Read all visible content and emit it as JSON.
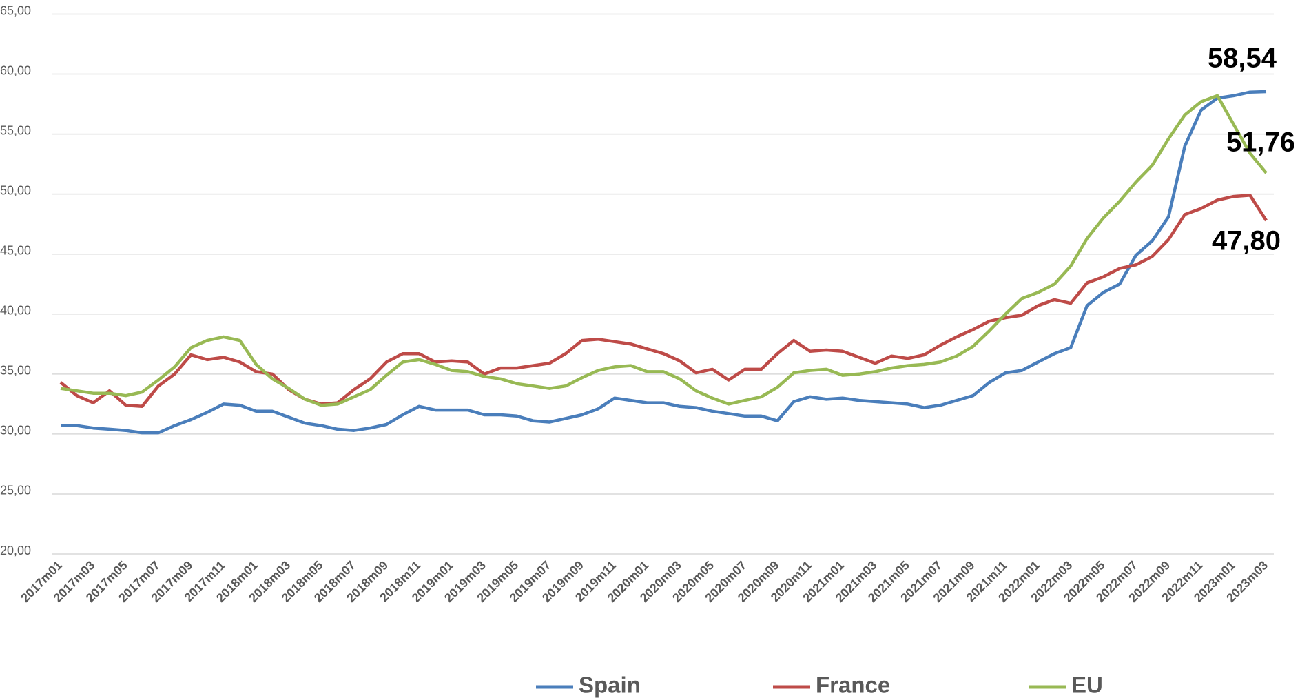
{
  "chart_data": {
    "type": "line",
    "categories": [
      "2017m01",
      null,
      "2017m03",
      null,
      "2017m05",
      null,
      "2017m07",
      null,
      "2017m09",
      null,
      "2017m11",
      null,
      "2018m01",
      null,
      "2018m03",
      null,
      "2018m05",
      null,
      "2018m07",
      null,
      "2018m09",
      null,
      "2018m11",
      null,
      "2019m01",
      null,
      "2019m03",
      null,
      "2019m05",
      null,
      "2019m07",
      null,
      "2019m09",
      null,
      "2019m11",
      null,
      "2020m01",
      null,
      "2020m03",
      null,
      "2020m05",
      null,
      "2020m07",
      null,
      "2020m09",
      null,
      "2020m11",
      null,
      "2021m01",
      null,
      "2021m03",
      null,
      "2021m05",
      null,
      "2021m07",
      null,
      "2021m09",
      null,
      "2021m11",
      null,
      "2022m01",
      null,
      "2022m03",
      null,
      "2022m05",
      null,
      "2022m07",
      null,
      "2022m09",
      null,
      "2022m11",
      null,
      "2023m01",
      null,
      "2023m03"
    ],
    "series": [
      {
        "name": "Spain",
        "color": "#4a7ebb",
        "values": [
          30.7,
          30.7,
          30.5,
          30.4,
          30.3,
          30.1,
          30.1,
          30.7,
          31.2,
          31.8,
          32.5,
          32.4,
          31.9,
          31.9,
          31.4,
          30.9,
          30.7,
          30.4,
          30.3,
          30.5,
          30.8,
          31.6,
          32.3,
          32.0,
          32.0,
          32.0,
          31.6,
          31.6,
          31.5,
          31.1,
          31.0,
          31.3,
          31.6,
          32.1,
          33.0,
          32.8,
          32.6,
          32.6,
          32.3,
          32.2,
          31.9,
          31.7,
          31.5,
          31.5,
          31.1,
          32.7,
          33.1,
          32.9,
          33.0,
          32.8,
          32.7,
          32.6,
          32.5,
          32.2,
          32.4,
          32.8,
          33.2,
          34.3,
          35.1,
          35.3,
          36.0,
          36.7,
          37.2,
          40.7,
          41.8,
          42.5,
          44.9,
          46.1,
          48.1,
          54.0,
          57.0,
          58.0,
          58.2,
          58.5,
          58.54
        ],
        "value_labels": [
          null,
          null,
          null,
          null,
          null,
          null,
          null,
          null,
          null,
          null,
          null,
          null,
          null,
          null,
          null,
          null,
          null,
          null,
          null,
          null,
          null,
          null,
          null,
          null,
          null,
          null,
          null,
          null,
          null,
          null,
          null,
          null,
          null,
          null,
          null,
          null,
          null,
          null,
          null,
          null,
          null,
          null,
          null,
          null,
          null,
          null,
          null,
          null,
          null,
          null,
          null,
          null,
          null,
          null,
          null,
          null,
          null,
          null,
          null,
          null,
          null,
          null,
          null,
          null,
          null,
          null,
          null,
          null,
          null,
          null,
          null,
          null,
          null,
          null,
          "58,54"
        ]
      },
      {
        "name": "France",
        "color": "#be4b48",
        "values": [
          34.3,
          33.2,
          32.6,
          33.6,
          32.4,
          32.3,
          34.0,
          35.0,
          36.6,
          36.2,
          36.4,
          36.0,
          35.2,
          35.0,
          33.7,
          32.9,
          32.5,
          32.6,
          33.7,
          34.6,
          36.0,
          36.7,
          36.7,
          36.0,
          36.1,
          36.0,
          35.0,
          35.5,
          35.5,
          35.7,
          35.9,
          36.7,
          37.8,
          37.9,
          37.7,
          37.5,
          37.1,
          36.7,
          36.1,
          35.1,
          35.4,
          34.5,
          35.4,
          35.4,
          36.7,
          37.8,
          36.9,
          37.0,
          36.9,
          36.4,
          35.9,
          36.5,
          36.3,
          36.6,
          37.4,
          38.1,
          38.7,
          39.4,
          39.7,
          39.9,
          40.7,
          41.2,
          40.9,
          42.6,
          43.1,
          43.8,
          44.1,
          44.8,
          46.2,
          48.3,
          48.8,
          49.5,
          49.8,
          49.9,
          47.8
        ],
        "value_labels": [
          null,
          null,
          null,
          null,
          null,
          null,
          null,
          null,
          null,
          null,
          null,
          null,
          null,
          null,
          null,
          null,
          null,
          null,
          null,
          null,
          null,
          null,
          null,
          null,
          null,
          null,
          null,
          null,
          null,
          null,
          null,
          null,
          null,
          null,
          null,
          null,
          null,
          null,
          null,
          null,
          null,
          null,
          null,
          null,
          null,
          null,
          null,
          null,
          null,
          null,
          null,
          null,
          null,
          null,
          null,
          null,
          null,
          null,
          null,
          null,
          null,
          null,
          null,
          null,
          null,
          null,
          null,
          null,
          null,
          null,
          null,
          null,
          null,
          null,
          "47,80"
        ]
      },
      {
        "name": "EU",
        "color": "#98b954",
        "values": [
          33.8,
          33.6,
          33.4,
          33.4,
          33.2,
          33.5,
          34.5,
          35.6,
          37.2,
          37.8,
          38.1,
          37.8,
          35.8,
          34.6,
          33.8,
          32.9,
          32.4,
          32.5,
          33.1,
          33.7,
          34.9,
          36.0,
          36.2,
          35.8,
          35.3,
          35.2,
          34.8,
          34.6,
          34.2,
          34.0,
          33.8,
          34.0,
          34.7,
          35.3,
          35.6,
          35.7,
          35.2,
          35.2,
          34.6,
          33.6,
          33.0,
          32.5,
          32.8,
          33.1,
          33.9,
          35.1,
          35.3,
          35.4,
          34.9,
          35.0,
          35.2,
          35.5,
          35.7,
          35.8,
          36.0,
          36.5,
          37.3,
          38.6,
          40.0,
          41.3,
          41.8,
          42.5,
          44.0,
          46.3,
          48.0,
          49.4,
          51.0,
          52.4,
          54.6,
          56.6,
          57.7,
          58.2,
          55.8,
          53.4,
          51.76
        ],
        "value_labels": [
          null,
          null,
          null,
          null,
          null,
          null,
          null,
          null,
          null,
          null,
          null,
          null,
          null,
          null,
          null,
          null,
          null,
          null,
          null,
          null,
          null,
          null,
          null,
          null,
          null,
          null,
          null,
          null,
          null,
          null,
          null,
          null,
          null,
          null,
          null,
          null,
          null,
          null,
          null,
          null,
          null,
          null,
          null,
          null,
          null,
          null,
          null,
          null,
          null,
          null,
          null,
          null,
          null,
          null,
          null,
          null,
          null,
          null,
          null,
          null,
          null,
          null,
          null,
          null,
          null,
          null,
          null,
          null,
          null,
          null,
          null,
          null,
          null,
          null,
          "51,76"
        ]
      }
    ],
    "ylim": [
      20,
      65
    ],
    "yticks": [
      {
        "value": 20,
        "label": "20,00"
      },
      {
        "value": 25,
        "label": "25,00"
      },
      {
        "value": 30,
        "label": "30,00"
      },
      {
        "value": 35,
        "label": "35,00"
      },
      {
        "value": 40,
        "label": "40,00"
      },
      {
        "value": 45,
        "label": "45,00"
      },
      {
        "value": 50,
        "label": "50,00"
      },
      {
        "value": 55,
        "label": "55,00"
      },
      {
        "value": 60,
        "label": "60,00"
      },
      {
        "value": 65,
        "label": "65,00"
      }
    ],
    "grid": true,
    "legend": "bottom"
  }
}
